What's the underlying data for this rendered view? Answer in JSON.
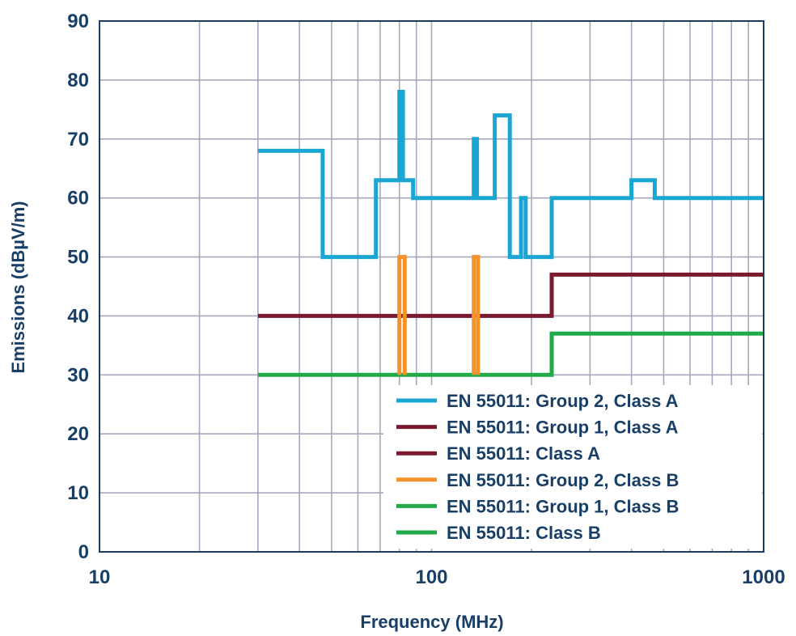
{
  "chart_data": {
    "type": "line",
    "title": "",
    "xlabel": "Frequency (MHz)",
    "ylabel": "Emissions (dBµV/m)",
    "xscale": "log",
    "xlim": [
      10,
      1000
    ],
    "ylim": [
      0,
      90
    ],
    "x_ticks": [
      {
        "value": 10,
        "label": "10"
      },
      {
        "value": 100,
        "label": "100"
      },
      {
        "value": 1000,
        "label": "1000"
      }
    ],
    "y_ticks": [
      {
        "value": 0,
        "label": "0"
      },
      {
        "value": 10,
        "label": "10"
      },
      {
        "value": 20,
        "label": "20"
      },
      {
        "value": 30,
        "label": "30"
      },
      {
        "value": 40,
        "label": "40"
      },
      {
        "value": 50,
        "label": "50"
      },
      {
        "value": 60,
        "label": "60"
      },
      {
        "value": 70,
        "label": "70"
      },
      {
        "value": 80,
        "label": "80"
      },
      {
        "value": 90,
        "label": "90"
      }
    ],
    "grid": true,
    "legend_position": "bottom-right",
    "series": [
      {
        "name": "EN 55011: Group 2, Class A",
        "color": "#1aa6d2",
        "points": [
          [
            30,
            68
          ],
          [
            47,
            68
          ],
          [
            47,
            50
          ],
          [
            68,
            50
          ],
          [
            68,
            63
          ],
          [
            80,
            63
          ],
          [
            80,
            78
          ],
          [
            82,
            78
          ],
          [
            82,
            63
          ],
          [
            88,
            63
          ],
          [
            88,
            60
          ],
          [
            134,
            60
          ],
          [
            134,
            70
          ],
          [
            137,
            70
          ],
          [
            137,
            60
          ],
          [
            155,
            60
          ],
          [
            155,
            74
          ],
          [
            172,
            74
          ],
          [
            172,
            50
          ],
          [
            186,
            50
          ],
          [
            186,
            60
          ],
          [
            192,
            60
          ],
          [
            192,
            50
          ],
          [
            230,
            50
          ],
          [
            230,
            60
          ],
          [
            400,
            60
          ],
          [
            400,
            63
          ],
          [
            470,
            63
          ],
          [
            470,
            60
          ],
          [
            1000,
            60
          ]
        ]
      },
      {
        "name": "EN 55011: Group 1, Class A",
        "color": "#7a1a2e",
        "points": [
          [
            30,
            40
          ],
          [
            230,
            40
          ],
          [
            230,
            47
          ],
          [
            1000,
            47
          ]
        ]
      },
      {
        "name": "EN 55011: Class A",
        "color": "#7a1a2e",
        "points": []
      },
      {
        "name": "EN 55011: Group 2, Class B",
        "color": "#f5922a",
        "points": [
          [
            80,
            30
          ],
          [
            80,
            50
          ],
          [
            83,
            50
          ],
          [
            83,
            30
          ],
          null,
          [
            134,
            30
          ],
          [
            134,
            50
          ],
          [
            138,
            50
          ],
          [
            138,
            30
          ]
        ]
      },
      {
        "name": "EN 55011: Group 1, Class B",
        "color": "#22aa4a",
        "points": [
          [
            30,
            30
          ],
          [
            230,
            30
          ],
          [
            230,
            37
          ],
          [
            1000,
            37
          ]
        ]
      },
      {
        "name": "EN 55011: Class B",
        "color": "#22aa4a",
        "points": []
      }
    ]
  }
}
